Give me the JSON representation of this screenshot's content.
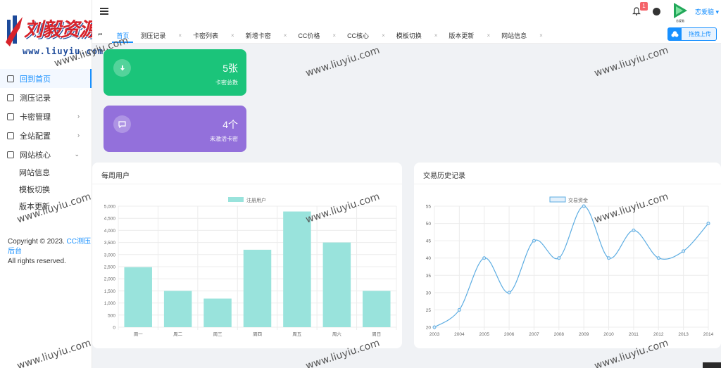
{
  "brand": {
    "name": "刘毅资源网",
    "url": "www.liuyiu.com"
  },
  "sidebar": {
    "items": [
      {
        "label": "回到首页",
        "icon": "home-icon",
        "active": true
      },
      {
        "label": "测压记录",
        "icon": "record-icon"
      },
      {
        "label": "卡密管理",
        "icon": "card-manage-icon",
        "expandable": true
      },
      {
        "label": "全站配置",
        "icon": "config-icon",
        "expandable": true
      },
      {
        "label": "网站核心",
        "icon": "core-icon",
        "expanded": true
      }
    ],
    "subitems": [
      "网站信息",
      "模板切换",
      "版本更新"
    ],
    "copyright_prefix": "Copyright © 2023.",
    "copyright_link": "CC测压后台",
    "copyright_suffix": "All rights reserved."
  },
  "header": {
    "tabs": [
      "首页",
      "测压记录",
      "卡密列表",
      "新增卡密",
      "CC价格",
      "CC核心",
      "模板切换",
      "版本更新",
      "网站信息"
    ],
    "active_tab": "首页",
    "notification_count": "1",
    "username": "恋爱脑",
    "avatar_caption": "恋爱脑",
    "upload_label": "拖拽上传"
  },
  "stats": {
    "total_cards": {
      "value": "5张",
      "label": "卡密总数"
    },
    "inactive_cards": {
      "value": "4个",
      "label": "未激活卡密"
    }
  },
  "charts": {
    "weekly_title": "每周用户",
    "history_title": "交易历史记录"
  },
  "chart_data": [
    {
      "type": "bar",
      "categories": [
        "周一",
        "周二",
        "周三",
        "周四",
        "周五",
        "周六",
        "周日"
      ],
      "series": [
        {
          "name": "注册用户",
          "values": [
            2480,
            1500,
            1180,
            3200,
            4780,
            3500,
            1500
          ],
          "color": "#99e3dc"
        }
      ],
      "ylim": [
        0,
        5000
      ],
      "yticks": [
        "0",
        "500",
        "1,000",
        "1,500",
        "2,000",
        "2,500",
        "3,000",
        "3,500",
        "4,000",
        "4,500",
        "5,000"
      ],
      "legend": "top-center",
      "grid": true
    },
    {
      "type": "line",
      "x": [
        "2003",
        "2004",
        "2005",
        "2006",
        "2007",
        "2008",
        "2009",
        "2010",
        "2011",
        "2012",
        "2013",
        "2014"
      ],
      "series": [
        {
          "name": "交易资金",
          "values": [
            20,
            25,
            40,
            30,
            45,
            40,
            55,
            40,
            48,
            40,
            42,
            50
          ],
          "color": "#5dade2"
        }
      ],
      "ylim": [
        20,
        55
      ],
      "yticks": [
        "20",
        "25",
        "30",
        "35",
        "40",
        "45",
        "50",
        "55"
      ],
      "legend": "top-center",
      "grid": true
    }
  ],
  "watermark": "www.liuyiu.com",
  "colors": {
    "accent": "#1890ff",
    "green_card": "#1bc47a",
    "purple_card": "#9370db",
    "badge": "#f5646a"
  }
}
